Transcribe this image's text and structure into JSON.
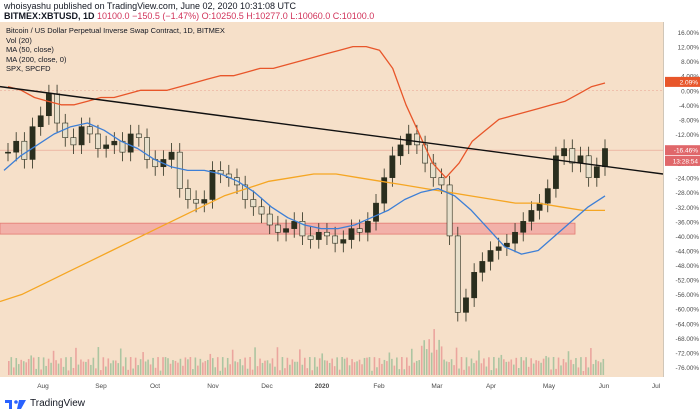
{
  "header": {
    "publisher_line": "whoisyashu published on TradingView.com, June 02, 2020 10:31:08 UTC",
    "symbol": "BITMEX:XBTUSD, 1D",
    "price_line": "10100.0",
    "change_line": "−150.5 (−1.47%)",
    "ohlc_line": "O:10250.5 H:10277.0 L:10060.0 C:10100.0"
  },
  "legend": {
    "title": "Bitcoin / US Dollar Perpetual Inverse Swap Contract, 1D, BITMEX",
    "vol": "Vol (20)",
    "ma50": "MA (50, close)",
    "ma200": "MA (200, close, 0)",
    "spx": "SPX, SPCFD"
  },
  "right_axis_labels": [
    "16.00%",
    "12.00%",
    "8.00%",
    "4.00%",
    "0.00%",
    "-4.00%",
    "-8.00%",
    "-12.00%",
    "-16.00%",
    "-20.00%",
    "-24.00%",
    "-28.00%",
    "-32.00%",
    "-36.00%",
    "-40.00%",
    "-44.00%",
    "-48.00%",
    "-52.00%",
    "-56.00%",
    "-60.00%",
    "-64.00%",
    "-68.00%",
    "-72.00%",
    "-76.00%"
  ],
  "price_badges": {
    "spx": "2.09%",
    "btc": "-16.46%",
    "timer": "13:28:54"
  },
  "x_axis_labels": [
    "Aug",
    "Sep",
    "Oct",
    "Nov",
    "Dec",
    "2020",
    "Feb",
    "Mar",
    "Apr",
    "May",
    "Jun",
    "Jul"
  ],
  "footer": {
    "brand": "TradingView"
  },
  "colors": {
    "plot_bg": "#f6e0c9",
    "candle_up": "#2a2e1e",
    "candle_down": "#e8e0cc",
    "ma50": "#3d7fd6",
    "ma200": "#f5a623",
    "spx": "#e8562a",
    "trendline": "#111111",
    "support_zone": "#f2a9a4",
    "volume_up": "#9fbf9a",
    "volume_down": "#e99a96"
  },
  "chart_data": {
    "type": "candlestick",
    "y_axis": "percent change",
    "ylim": [
      -76,
      16
    ],
    "grid": false,
    "btc_close_pct": [
      -17,
      -14,
      -19,
      -10,
      -7,
      -1,
      -9,
      -13,
      -15,
      -10,
      -12,
      -16,
      -15,
      -14,
      -17,
      -12,
      -13,
      -19,
      -21,
      -19,
      -17,
      -27,
      -30,
      -31,
      -30,
      -22,
      -23,
      -24,
      -26,
      -30,
      -32,
      -34,
      -37,
      -39,
      -38,
      -36,
      -40,
      -41,
      -39,
      -40,
      -42,
      -41,
      -38,
      -39,
      -36,
      -31,
      -24,
      -18,
      -15,
      -12,
      -15,
      -20,
      -24,
      -26,
      -40,
      -61,
      -57,
      -50,
      -47,
      -44,
      -43,
      -42,
      -39,
      -36,
      -33,
      -31,
      -27,
      -18,
      -16,
      -20,
      -18,
      -24,
      -21,
      -16
    ],
    "ma50_pct": [
      -22,
      -18,
      -15,
      -12,
      -10,
      -9,
      -11,
      -14,
      -16,
      -19,
      -21,
      -22,
      -22,
      -23,
      -25,
      -28,
      -32,
      -35,
      -37,
      -38,
      -38,
      -37,
      -35,
      -33,
      -30,
      -28,
      -27,
      -29,
      -33,
      -38,
      -43,
      -45,
      -44,
      -40,
      -36,
      -32,
      -29
    ],
    "ma200_pct": [
      -58,
      -56,
      -53,
      -50,
      -47,
      -44,
      -41,
      -38,
      -35,
      -32,
      -29,
      -27,
      -25,
      -24,
      -23,
      -23,
      -24,
      -25,
      -26,
      -27,
      -28,
      -29,
      -30,
      -31,
      -31,
      -32,
      -33,
      -33
    ],
    "spx_pct": [
      1,
      0,
      -2,
      -3,
      -4,
      -4,
      -3,
      -2,
      -2,
      -1,
      0,
      0,
      0,
      1,
      2,
      3,
      4,
      4,
      5,
      6,
      6,
      7,
      8,
      9,
      10,
      11,
      12,
      12,
      11,
      6,
      -4,
      -12,
      -20,
      -24,
      -20,
      -14,
      -11,
      -8,
      -7,
      -6,
      -5,
      -4,
      -3,
      -1,
      1,
      2
    ],
    "trendline_pct": [
      [
        0,
        1
      ],
      [
        663,
        -23
      ]
    ],
    "support_zone_pct": [
      -36.5,
      -39.5
    ]
  }
}
